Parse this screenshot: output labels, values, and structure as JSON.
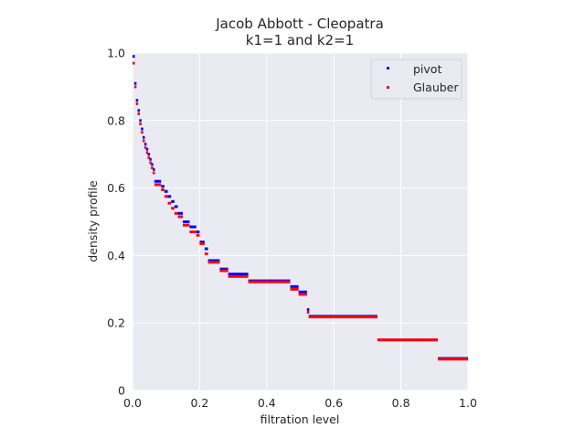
{
  "chart_data": {
    "type": "scatter",
    "title": "Jacob Abbott - Cleopatra",
    "subtitle": "k1=1 and k2=1",
    "xlabel": "filtration level",
    "ylabel": "density profile",
    "xlim": [
      0,
      1
    ],
    "ylim": [
      0,
      1
    ],
    "xticks": [
      "0.0",
      "0.2",
      "0.4",
      "0.6",
      "0.8",
      "1.0"
    ],
    "yticks": [
      "0",
      "0.2",
      "0.4",
      "0.6",
      "0.8",
      "1.0"
    ],
    "grid": true,
    "legend_position": "top-right",
    "series": [
      {
        "name": "pivot",
        "color": "#0000ff",
        "segments": [
          [
            0.0,
            0.005,
            0.99
          ],
          [
            0.005,
            0.01,
            0.91
          ],
          [
            0.01,
            0.015,
            0.86
          ],
          [
            0.015,
            0.02,
            0.83
          ],
          [
            0.02,
            0.025,
            0.8
          ],
          [
            0.025,
            0.03,
            0.775
          ],
          [
            0.03,
            0.035,
            0.75
          ],
          [
            0.035,
            0.04,
            0.73
          ],
          [
            0.04,
            0.045,
            0.715
          ],
          [
            0.045,
            0.05,
            0.7
          ],
          [
            0.05,
            0.055,
            0.685
          ],
          [
            0.055,
            0.06,
            0.67
          ],
          [
            0.06,
            0.065,
            0.655
          ],
          [
            0.065,
            0.085,
            0.62
          ],
          [
            0.085,
            0.095,
            0.605
          ],
          [
            0.095,
            0.105,
            0.59
          ],
          [
            0.105,
            0.115,
            0.575
          ],
          [
            0.115,
            0.125,
            0.56
          ],
          [
            0.125,
            0.135,
            0.545
          ],
          [
            0.135,
            0.15,
            0.525
          ],
          [
            0.15,
            0.17,
            0.5
          ],
          [
            0.17,
            0.19,
            0.485
          ],
          [
            0.19,
            0.2,
            0.47
          ],
          [
            0.2,
            0.215,
            0.44
          ],
          [
            0.215,
            0.225,
            0.42
          ],
          [
            0.225,
            0.26,
            0.385
          ],
          [
            0.26,
            0.285,
            0.36
          ],
          [
            0.285,
            0.345,
            0.345
          ],
          [
            0.345,
            0.47,
            0.325
          ],
          [
            0.47,
            0.495,
            0.308
          ],
          [
            0.495,
            0.52,
            0.292
          ],
          [
            0.52,
            0.525,
            0.24
          ],
          [
            0.525,
            0.73,
            0.22
          ],
          [
            0.73,
            0.91,
            0.15
          ],
          [
            0.91,
            1.0,
            0.095
          ]
        ]
      },
      {
        "name": "Glauber",
        "color": "#ff0000",
        "segments": [
          [
            0.0,
            0.005,
            0.97
          ],
          [
            0.005,
            0.01,
            0.9
          ],
          [
            0.01,
            0.015,
            0.85
          ],
          [
            0.015,
            0.02,
            0.82
          ],
          [
            0.02,
            0.025,
            0.79
          ],
          [
            0.025,
            0.03,
            0.765
          ],
          [
            0.03,
            0.035,
            0.74
          ],
          [
            0.035,
            0.04,
            0.72
          ],
          [
            0.04,
            0.045,
            0.705
          ],
          [
            0.045,
            0.05,
            0.69
          ],
          [
            0.05,
            0.055,
            0.675
          ],
          [
            0.055,
            0.06,
            0.66
          ],
          [
            0.06,
            0.065,
            0.645
          ],
          [
            0.065,
            0.085,
            0.61
          ],
          [
            0.085,
            0.095,
            0.595
          ],
          [
            0.095,
            0.105,
            0.575
          ],
          [
            0.105,
            0.115,
            0.555
          ],
          [
            0.115,
            0.125,
            0.54
          ],
          [
            0.125,
            0.135,
            0.525
          ],
          [
            0.135,
            0.15,
            0.515
          ],
          [
            0.15,
            0.17,
            0.49
          ],
          [
            0.17,
            0.19,
            0.47
          ],
          [
            0.19,
            0.2,
            0.46
          ],
          [
            0.2,
            0.215,
            0.435
          ],
          [
            0.215,
            0.225,
            0.405
          ],
          [
            0.225,
            0.26,
            0.38
          ],
          [
            0.26,
            0.285,
            0.355
          ],
          [
            0.285,
            0.345,
            0.338
          ],
          [
            0.345,
            0.47,
            0.322
          ],
          [
            0.47,
            0.495,
            0.3
          ],
          [
            0.495,
            0.52,
            0.285
          ],
          [
            0.52,
            0.525,
            0.232
          ],
          [
            0.525,
            0.73,
            0.218
          ],
          [
            0.73,
            0.91,
            0.15
          ],
          [
            0.91,
            1.0,
            0.093
          ]
        ]
      }
    ]
  }
}
